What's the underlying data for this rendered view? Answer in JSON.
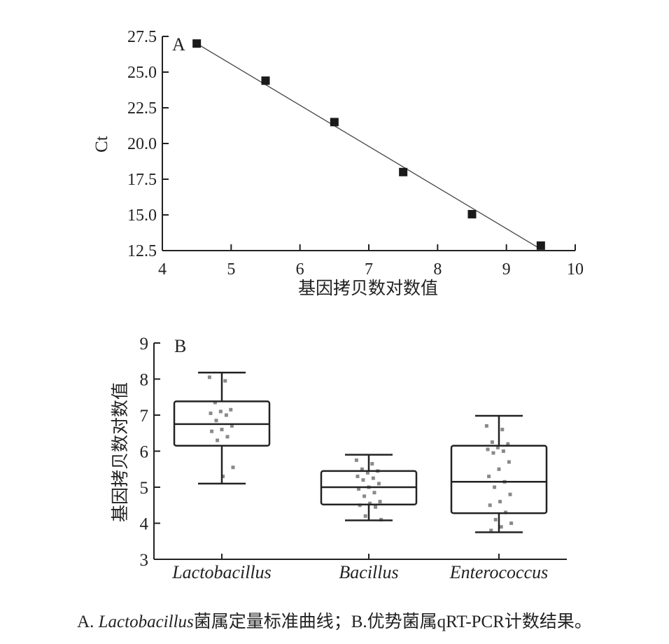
{
  "chart_data": [
    {
      "type": "scatter",
      "panel_label": "A",
      "xlabel": "基因拷贝数对数值",
      "ylabel": "Ct",
      "xlim": [
        4,
        10
      ],
      "ylim": [
        12.5,
        27.5
      ],
      "xticks": [
        "4",
        "5",
        "6",
        "7",
        "8",
        "9",
        "10"
      ],
      "yticks": [
        "12.5",
        "15.0",
        "17.5",
        "20.0",
        "22.5",
        "25.0",
        "27.5"
      ],
      "points": [
        {
          "x": 4.5,
          "y": 27.0
        },
        {
          "x": 5.5,
          "y": 24.4
        },
        {
          "x": 6.5,
          "y": 21.5
        },
        {
          "x": 7.5,
          "y": 18.0
        },
        {
          "x": 8.5,
          "y": 15.05
        },
        {
          "x": 9.5,
          "y": 12.85
        }
      ],
      "fit_line": {
        "x": [
          4.5,
          9.5
        ],
        "y": [
          27.0,
          12.6
        ]
      },
      "grid": false,
      "marker_color": "#1a1a1a"
    },
    {
      "type": "box",
      "panel_label": "B",
      "xlabel": "",
      "ylabel": "基因拷贝数对数值",
      "ylim": [
        3,
        9
      ],
      "yticks": [
        "3",
        "4",
        "5",
        "6",
        "7",
        "8",
        "9"
      ],
      "categories": [
        "Lactobacillus",
        "Bacillus",
        "Enterococcus"
      ],
      "boxes": [
        {
          "name": "Lactobacillus",
          "min": 5.1,
          "q1": 6.15,
          "median": 6.75,
          "q3": 7.38,
          "max": 8.18,
          "points": [
            8.05,
            7.95,
            7.35,
            7.15,
            7.1,
            7.05,
            7.0,
            6.85,
            6.7,
            6.6,
            6.55,
            6.4,
            6.3,
            5.55,
            5.3
          ]
        },
        {
          "name": "Bacillus",
          "min": 4.08,
          "q1": 4.52,
          "median": 5.0,
          "q3": 5.45,
          "max": 5.9,
          "points": [
            5.75,
            5.65,
            5.5,
            5.45,
            5.4,
            5.3,
            5.25,
            5.2,
            5.1,
            5.0,
            4.95,
            4.85,
            4.75,
            4.6,
            4.55,
            4.5,
            4.45,
            4.2,
            4.1
          ]
        },
        {
          "name": "Enterococcus",
          "min": 3.75,
          "q1": 4.28,
          "median": 5.15,
          "q3": 6.15,
          "max": 6.98,
          "points": [
            6.7,
            6.6,
            6.25,
            6.2,
            6.1,
            6.05,
            6.0,
            5.95,
            5.7,
            5.5,
            5.3,
            5.15,
            5.0,
            4.8,
            4.6,
            4.5,
            4.3,
            4.1,
            4.0,
            3.9,
            3.8
          ]
        }
      ],
      "grid": false
    }
  ],
  "caption": {
    "prefix": "A. ",
    "italic": "Lactobacillus",
    "rest": "菌属定量标准曲线；B.优势菌属qRT-PCR计数结果。"
  }
}
